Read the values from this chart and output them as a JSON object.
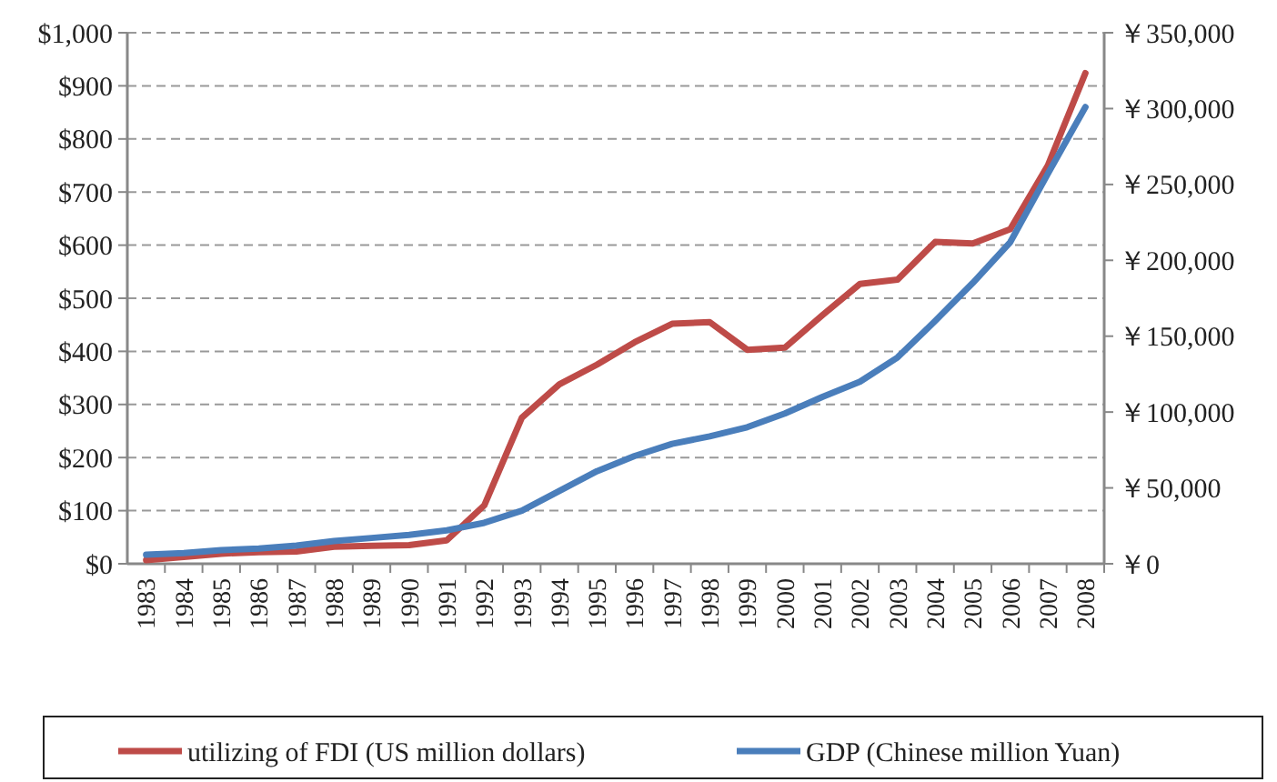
{
  "chart_data": {
    "type": "line",
    "categories": [
      "1983",
      "1984",
      "1985",
      "1986",
      "1987",
      "1988",
      "1989",
      "1990",
      "1991",
      "1992",
      "1993",
      "1994",
      "1995",
      "1996",
      "1997",
      "1998",
      "1999",
      "2000",
      "2001",
      "2002",
      "2003",
      "2004",
      "2005",
      "2006",
      "2007",
      "2008"
    ],
    "series": [
      {
        "name": "utilizing of FDI (US million dollars)",
        "color": "#be4b48",
        "values": [
          7,
          13,
          19,
          22,
          23,
          32,
          34,
          35,
          44,
          110,
          275,
          338,
          375,
          417,
          452,
          455,
          403,
          407,
          468,
          527,
          535,
          606,
          603,
          630,
          750,
          924
        ]
      },
      {
        "name": "GDP (Chinese million Yuan)",
        "color": "#4a7ebb",
        "axis": "y2",
        "values": [
          6000,
          7000,
          9000,
          10000,
          12000,
          15000,
          17000,
          19000,
          22000,
          27000,
          35000,
          48000,
          61000,
          71000,
          79000,
          84000,
          90000,
          99000,
          110000,
          120000,
          136000,
          160000,
          185000,
          212000,
          257000,
          301000
        ]
      }
    ],
    "ylim": [
      0,
      1000
    ],
    "yticks": [
      {
        "value": 0,
        "label": "$0"
      },
      {
        "value": 100,
        "label": "$100"
      },
      {
        "value": 200,
        "label": "$200"
      },
      {
        "value": 300,
        "label": "$300"
      },
      {
        "value": 400,
        "label": "$400"
      },
      {
        "value": 500,
        "label": "$500"
      },
      {
        "value": 600,
        "label": "$600"
      },
      {
        "value": 700,
        "label": "$700"
      },
      {
        "value": 800,
        "label": "$800"
      },
      {
        "value": 900,
        "label": "$900"
      },
      {
        "value": 1000,
        "label": "$1,000"
      }
    ],
    "y2lim": [
      0,
      350000
    ],
    "y2ticks": [
      {
        "value": 0,
        "label": "￥0"
      },
      {
        "value": 50000,
        "label": "￥50,000"
      },
      {
        "value": 100000,
        "label": "￥100,000"
      },
      {
        "value": 150000,
        "label": "￥150,000"
      },
      {
        "value": 200000,
        "label": "￥200,000"
      },
      {
        "value": 250000,
        "label": "￥250,000"
      },
      {
        "value": 300000,
        "label": "￥300,000"
      },
      {
        "value": 350000,
        "label": "￥350,000"
      }
    ],
    "grid": "y",
    "legend": "bottom",
    "marker": "none",
    "line_style": "solid"
  }
}
